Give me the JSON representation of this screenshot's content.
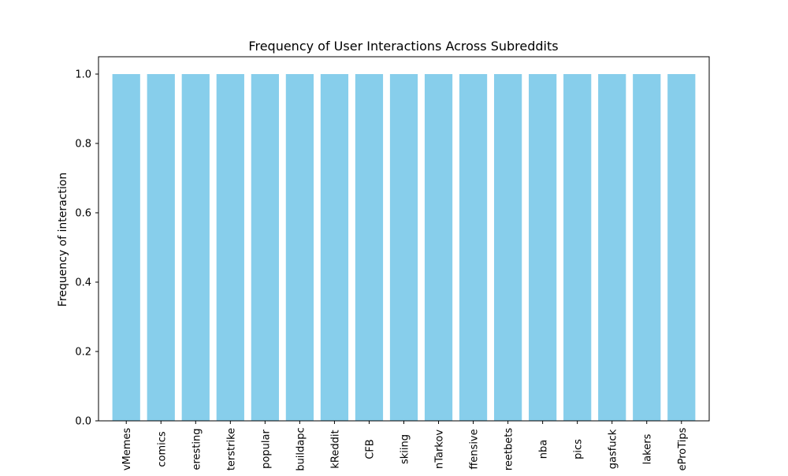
{
  "chart_data": {
    "type": "bar",
    "title": "Frequency of User Interactions Across Subreddits",
    "xlabel": "",
    "ylabel": "Frequency of interaction",
    "categories": [
      "vMemes",
      "comics",
      "eresting",
      "terstrike",
      "popular",
      "buildapc",
      "kReddit",
      "CFB",
      "skiing",
      "nTarkov",
      "ffensive",
      "reetbets",
      "nba",
      "pics",
      "gasfuck",
      "lakers",
      "eProTips"
    ],
    "values": [
      1,
      1,
      1,
      1,
      1,
      1,
      1,
      1,
      1,
      1,
      1,
      1,
      1,
      1,
      1,
      1,
      1
    ],
    "ylim": [
      0,
      1.05
    ],
    "yticks": [
      0.0,
      0.2,
      0.4,
      0.6,
      0.8,
      1.0
    ],
    "ytick_labels": [
      "0.0",
      "0.2",
      "0.4",
      "0.6",
      "0.8",
      "1.0"
    ],
    "bar_color": "#87ceeb",
    "grid": false,
    "legend": "none"
  }
}
